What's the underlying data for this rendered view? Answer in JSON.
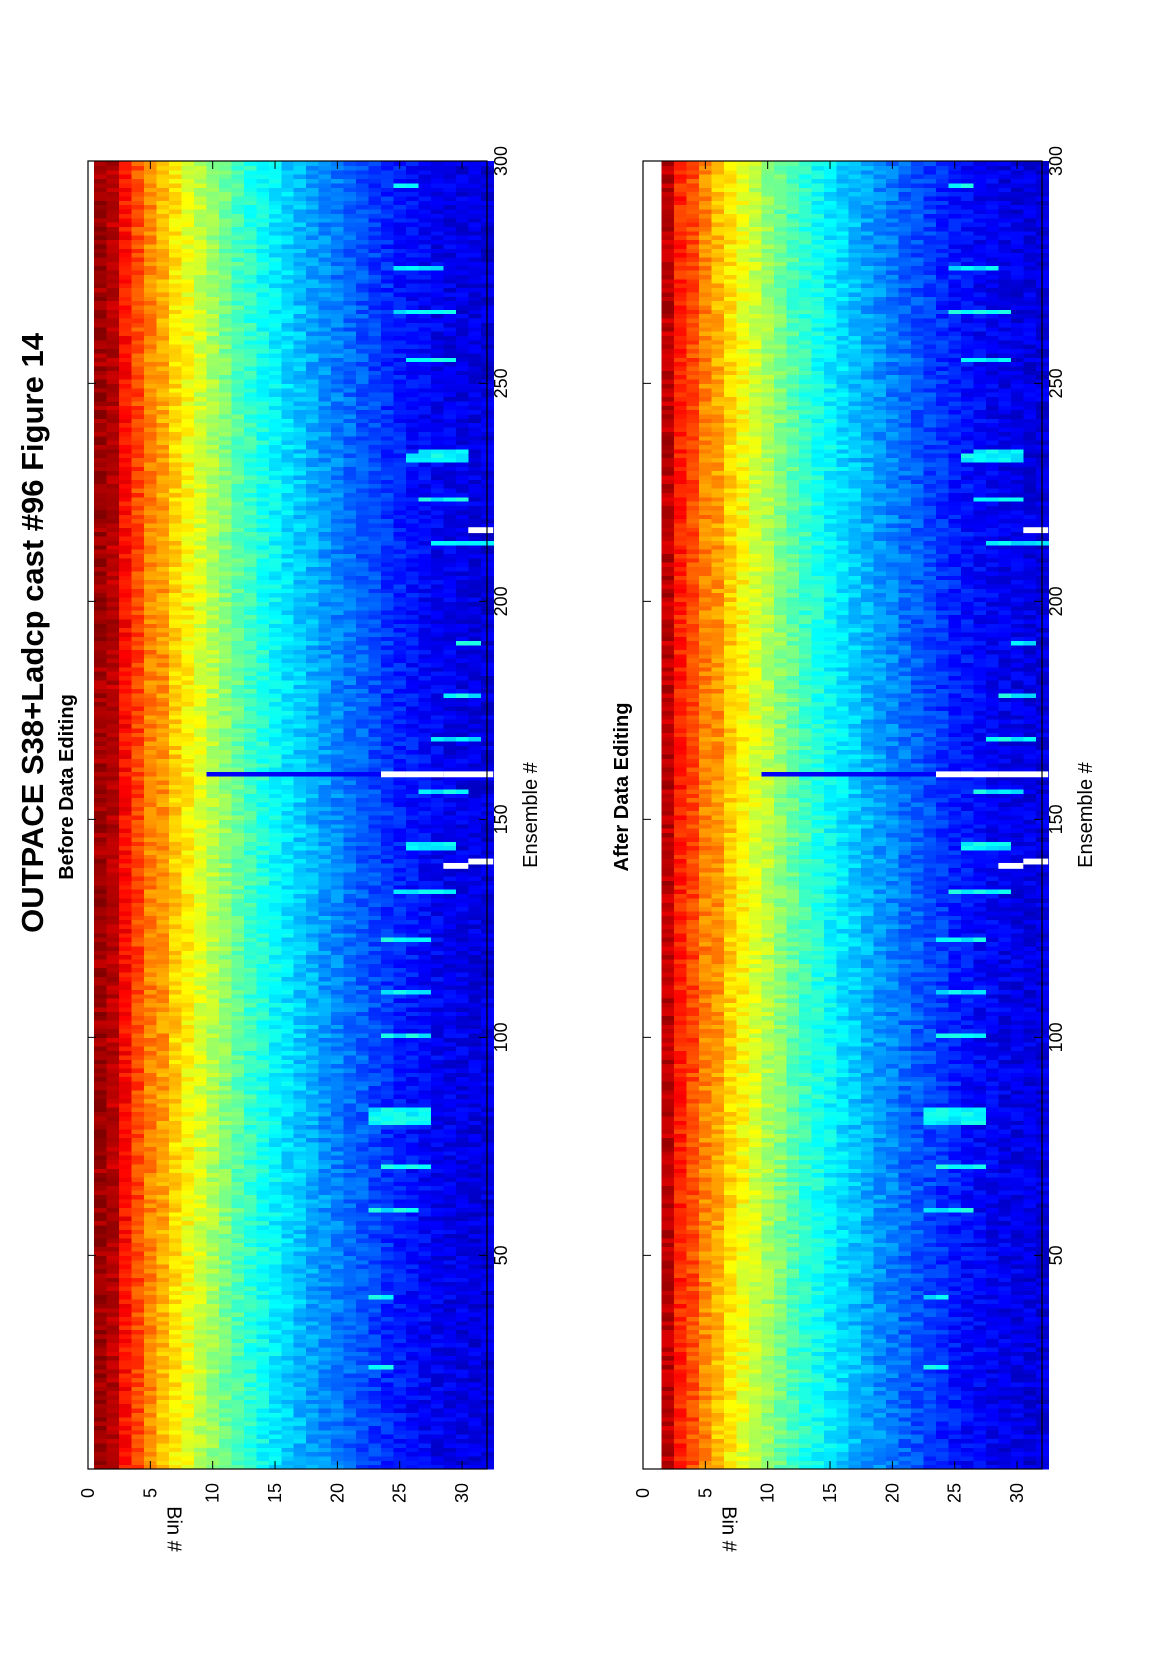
{
  "figure": {
    "title": "OUTPACE S38+Ladcp cast #96  Figure 14",
    "orientation": "rotated 90 degrees counter-clockwise"
  },
  "chart_data": [
    {
      "type": "heatmap",
      "title": "Before Data Editing",
      "xlabel": "Ensemble #",
      "ylabel": "Bin #",
      "xlim": [
        1,
        300
      ],
      "ylim": [
        0,
        32
      ],
      "y_reversed": true,
      "x_ticks": [
        50,
        100,
        150,
        200,
        250,
        300
      ],
      "y_ticks": [
        0,
        5,
        10,
        15,
        20,
        25,
        30
      ],
      "colormap": "jet",
      "color_scale": "echo intensity (red high, dark blue low)",
      "bins": 32,
      "ensembles": 300,
      "band_profile": {
        "bins": [
          1,
          2,
          3,
          4,
          5,
          6,
          8,
          10,
          12,
          14,
          16,
          18,
          20,
          22,
          24,
          26,
          28,
          30,
          32
        ],
        "level": [
          0.97,
          0.92,
          0.86,
          0.8,
          0.74,
          0.68,
          0.6,
          0.52,
          0.44,
          0.38,
          0.33,
          0.28,
          0.24,
          0.2,
          0.16,
          0.13,
          0.11,
          0.1,
          0.09
        ],
        "top_bin_row": 1
      },
      "bright_streaks": [
        {
          "ensemble": 24,
          "bins": [
            23,
            24
          ]
        },
        {
          "ensemble": 40,
          "bins": [
            23,
            24
          ]
        },
        {
          "ensemble": 60,
          "bins": [
            23,
            26
          ]
        },
        {
          "ensemble": 70,
          "bins": [
            24,
            27
          ]
        },
        {
          "ensemble": 80,
          "bins": [
            23,
            27
          ]
        },
        {
          "ensemble": 81,
          "bins": [
            23,
            27
          ]
        },
        {
          "ensemble": 82,
          "bins": [
            23,
            27
          ]
        },
        {
          "ensemble": 83,
          "bins": [
            23,
            27
          ]
        },
        {
          "ensemble": 100,
          "bins": [
            24,
            27
          ]
        },
        {
          "ensemble": 110,
          "bins": [
            24,
            27
          ]
        },
        {
          "ensemble": 122,
          "bins": [
            24,
            27
          ]
        },
        {
          "ensemble": 133,
          "bins": [
            25,
            29
          ]
        },
        {
          "ensemble": 143,
          "bins": [
            26,
            29
          ]
        },
        {
          "ensemble": 144,
          "bins": [
            26,
            29
          ]
        },
        {
          "ensemble": 156,
          "bins": [
            27,
            30
          ]
        },
        {
          "ensemble": 168,
          "bins": [
            28,
            31
          ]
        },
        {
          "ensemble": 178,
          "bins": [
            29,
            31
          ]
        },
        {
          "ensemble": 190,
          "bins": [
            30,
            31
          ]
        },
        {
          "ensemble": 213,
          "bins": [
            28,
            32
          ]
        },
        {
          "ensemble": 223,
          "bins": [
            27,
            30
          ]
        },
        {
          "ensemble": 232,
          "bins": [
            26,
            30
          ]
        },
        {
          "ensemble": 233,
          "bins": [
            26,
            30
          ]
        },
        {
          "ensemble": 234,
          "bins": [
            27,
            30
          ]
        },
        {
          "ensemble": 255,
          "bins": [
            26,
            29
          ]
        },
        {
          "ensemble": 266,
          "bins": [
            25,
            29
          ]
        },
        {
          "ensemble": 276,
          "bins": [
            25,
            28
          ]
        },
        {
          "ensemble": 295,
          "bins": [
            25,
            26
          ]
        }
      ],
      "vertical_stripe_ensemble": 160,
      "missing_segments": [
        {
          "ensemble": 139,
          "bins": [
            29,
            30
          ]
        },
        {
          "ensemble": 140,
          "bins": [
            31,
            32
          ]
        },
        {
          "ensemble": 160,
          "bins": [
            24,
            25
          ]
        },
        {
          "ensemble": 160,
          "bins": [
            26,
            28
          ]
        },
        {
          "ensemble": 160,
          "bins": [
            29,
            32
          ]
        },
        {
          "ensemble": 216,
          "bins": [
            31,
            32
          ]
        }
      ]
    },
    {
      "type": "heatmap",
      "title": "After Data Editing",
      "xlabel": "Ensemble #",
      "ylabel": "Bin #",
      "xlim": [
        1,
        300
      ],
      "ylim": [
        0,
        32
      ],
      "y_reversed": true,
      "x_ticks": [
        50,
        100,
        150,
        200,
        250,
        300
      ],
      "y_ticks": [
        0,
        5,
        10,
        15,
        20,
        25,
        30
      ],
      "colormap": "jet",
      "color_scale": "echo intensity (red high, dark blue low)",
      "bins": 32,
      "ensembles": 300,
      "band_profile": {
        "bins": [
          1,
          2,
          3,
          4,
          5,
          6,
          8,
          10,
          12,
          14,
          16,
          18,
          20,
          22,
          24,
          26,
          28,
          30,
          32
        ],
        "level": [
          0.92,
          0.88,
          0.84,
          0.8,
          0.74,
          0.68,
          0.6,
          0.52,
          0.44,
          0.38,
          0.33,
          0.28,
          0.24,
          0.2,
          0.16,
          0.13,
          0.11,
          0.1,
          0.09
        ],
        "top_bin_row": 2
      },
      "bright_streaks": [
        {
          "ensemble": 24,
          "bins": [
            23,
            24
          ]
        },
        {
          "ensemble": 40,
          "bins": [
            23,
            24
          ]
        },
        {
          "ensemble": 60,
          "bins": [
            23,
            26
          ]
        },
        {
          "ensemble": 70,
          "bins": [
            24,
            27
          ]
        },
        {
          "ensemble": 80,
          "bins": [
            23,
            27
          ]
        },
        {
          "ensemble": 81,
          "bins": [
            23,
            27
          ]
        },
        {
          "ensemble": 82,
          "bins": [
            23,
            27
          ]
        },
        {
          "ensemble": 83,
          "bins": [
            23,
            27
          ]
        },
        {
          "ensemble": 100,
          "bins": [
            24,
            27
          ]
        },
        {
          "ensemble": 110,
          "bins": [
            24,
            27
          ]
        },
        {
          "ensemble": 122,
          "bins": [
            24,
            27
          ]
        },
        {
          "ensemble": 133,
          "bins": [
            25,
            29
          ]
        },
        {
          "ensemble": 143,
          "bins": [
            26,
            29
          ]
        },
        {
          "ensemble": 144,
          "bins": [
            26,
            29
          ]
        },
        {
          "ensemble": 156,
          "bins": [
            27,
            30
          ]
        },
        {
          "ensemble": 168,
          "bins": [
            28,
            31
          ]
        },
        {
          "ensemble": 178,
          "bins": [
            29,
            31
          ]
        },
        {
          "ensemble": 190,
          "bins": [
            30,
            31
          ]
        },
        {
          "ensemble": 213,
          "bins": [
            28,
            32
          ]
        },
        {
          "ensemble": 223,
          "bins": [
            27,
            30
          ]
        },
        {
          "ensemble": 232,
          "bins": [
            26,
            30
          ]
        },
        {
          "ensemble": 233,
          "bins": [
            26,
            30
          ]
        },
        {
          "ensemble": 234,
          "bins": [
            27,
            30
          ]
        },
        {
          "ensemble": 255,
          "bins": [
            26,
            29
          ]
        },
        {
          "ensemble": 266,
          "bins": [
            25,
            29
          ]
        },
        {
          "ensemble": 276,
          "bins": [
            25,
            28
          ]
        },
        {
          "ensemble": 295,
          "bins": [
            25,
            26
          ]
        }
      ],
      "vertical_stripe_ensemble": 160,
      "missing_segments": [
        {
          "ensemble": 139,
          "bins": [
            29,
            30
          ]
        },
        {
          "ensemble": 140,
          "bins": [
            31,
            32
          ]
        },
        {
          "ensemble": 160,
          "bins": [
            24,
            25
          ]
        },
        {
          "ensemble": 160,
          "bins": [
            26,
            28
          ]
        },
        {
          "ensemble": 160,
          "bins": [
            29,
            32
          ]
        },
        {
          "ensemble": 216,
          "bins": [
            31,
            32
          ]
        }
      ]
    }
  ]
}
